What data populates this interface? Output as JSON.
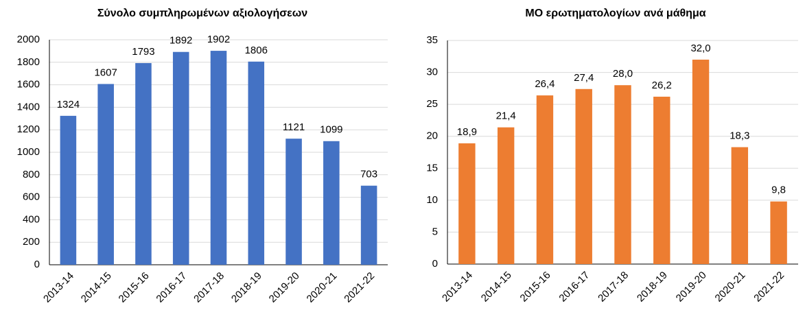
{
  "chart_data": [
    {
      "type": "bar",
      "title": "Σύνολο συμπληρωμένων αξιολογήσεων",
      "categories": [
        "2013-14",
        "2014-15",
        "2015-16",
        "2016-17",
        "2017-18",
        "2018-19",
        "2019-20",
        "2020-21",
        "2021-22"
      ],
      "values": [
        1324,
        1607,
        1793,
        1892,
        1902,
        1806,
        1121,
        1099,
        703
      ],
      "color": "#4472c4",
      "ylim": [
        0,
        2000
      ],
      "yticks": [
        0,
        200,
        400,
        600,
        800,
        1000,
        1200,
        1400,
        1600,
        1800,
        2000
      ],
      "grid": true
    },
    {
      "type": "bar",
      "title": "ΜΟ ερωτηματολογίων ανά μάθημα",
      "categories": [
        "2013-14",
        "2014-15",
        "2015-16",
        "2016-17",
        "2017-18",
        "2018-19",
        "2019-20",
        "2020-21",
        "2021-22"
      ],
      "values": [
        18.9,
        21.4,
        26.4,
        27.4,
        28.0,
        26.2,
        32.0,
        18.3,
        9.8
      ],
      "value_labels": [
        "18,9",
        "21,4",
        "26,4",
        "27,4",
        "28,0",
        "26,2",
        "32,0",
        "18,3",
        "9,8"
      ],
      "color": "#ed7d31",
      "ylim": [
        0,
        35
      ],
      "yticks": [
        0,
        5,
        10,
        15,
        20,
        25,
        30,
        35
      ],
      "grid": true
    }
  ]
}
